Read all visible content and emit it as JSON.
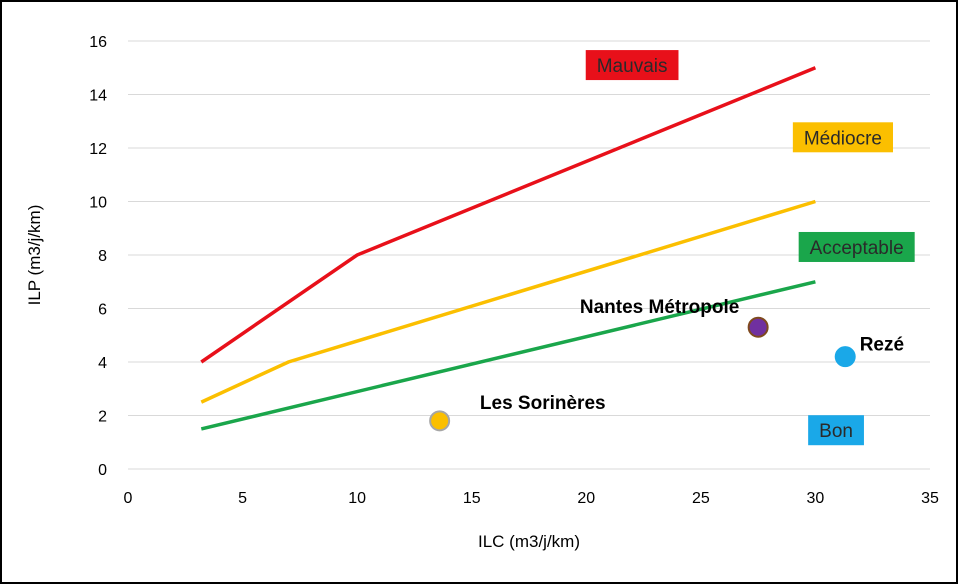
{
  "chart_data": {
    "type": "line",
    "xlabel": "ILC (m3/j/km)",
    "ylabel": "ILP (m3/j/km)",
    "xlim": [
      0,
      35
    ],
    "ylim": [
      0,
      16
    ],
    "x_ticks": [
      0,
      5,
      10,
      15,
      20,
      25,
      30,
      35
    ],
    "y_ticks": [
      0,
      2,
      4,
      6,
      8,
      10,
      12,
      14,
      16
    ],
    "grid": "horizontal",
    "series": [
      {
        "color": "#e8101a",
        "points": [
          [
            3.2,
            4
          ],
          [
            10,
            8
          ],
          [
            30,
            15
          ]
        ]
      },
      {
        "color": "#fbbf00",
        "points": [
          [
            3.2,
            2.5
          ],
          [
            7,
            4
          ],
          [
            30,
            10
          ]
        ]
      },
      {
        "color": "#1aa64b",
        "points": [
          [
            3.2,
            1.5
          ],
          [
            30,
            7
          ]
        ]
      }
    ],
    "zones": [
      {
        "label": "Mauvais",
        "bg": "#e8101a",
        "color": "#2a2a2a",
        "x": 22.0,
        "y": 15.1
      },
      {
        "label": "Médiocre",
        "bg": "#fbbf00",
        "color": "#2a2a2a",
        "x": 31.2,
        "y": 12.4
      },
      {
        "label": "Acceptable",
        "bg": "#1aa64b",
        "color": "#2a2a2a",
        "x": 31.8,
        "y": 8.3
      },
      {
        "label": "Bon",
        "bg": "#1aa8e8",
        "color": "#2a2a2a",
        "x": 30.9,
        "y": 1.45
      }
    ],
    "points": [
      {
        "label": "Les Sorinères",
        "x": 13.6,
        "y": 1.8,
        "fill": "#fbbf00",
        "stroke": "#a6a6a6",
        "label_x": 18.1,
        "label_y": 2.5
      },
      {
        "label": "Nantes Métropole",
        "x": 27.5,
        "y": 5.3,
        "fill": "#7030a0",
        "stroke": "#7f4a1f",
        "label_x": 23.2,
        "label_y": 6.1
      },
      {
        "label": "Rezé",
        "x": 31.3,
        "y": 4.2,
        "fill": "#1aa8e8",
        "stroke": "#1aa8e8",
        "label_x": 32.9,
        "label_y": 4.7
      }
    ]
  }
}
